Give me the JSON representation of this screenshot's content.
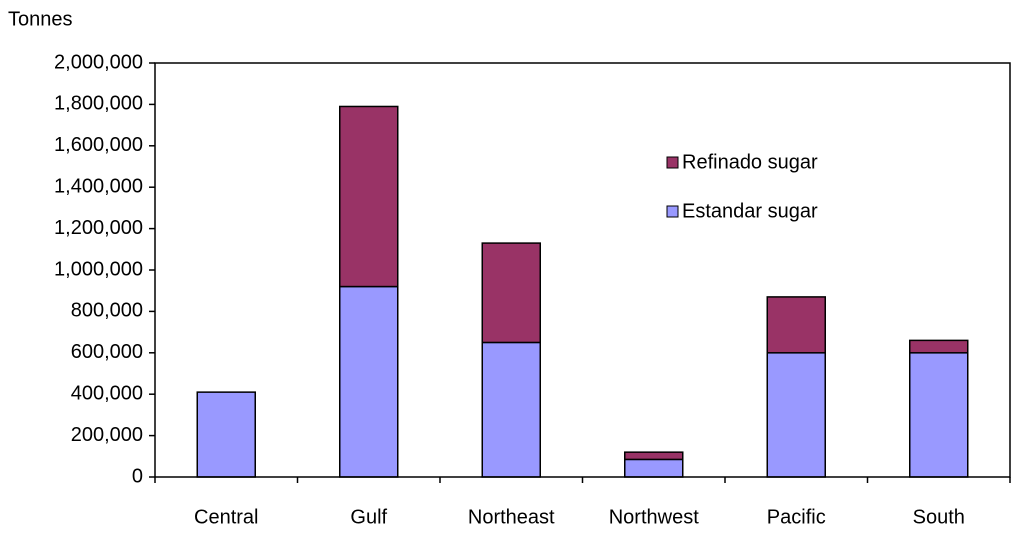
{
  "chart_data": {
    "type": "stacked_bar",
    "y_axis_label": "Tonnes",
    "categories": [
      "Central",
      "Gulf",
      "Northeast",
      "Northwest",
      "Pacific",
      "South"
    ],
    "series": [
      {
        "name": "Estandar sugar",
        "color": "#9999ff",
        "values": [
          410000,
          920000,
          650000,
          85000,
          600000,
          600000
        ]
      },
      {
        "name": "Refinado sugar",
        "color": "#993366",
        "values": [
          0,
          870000,
          480000,
          35000,
          270000,
          60000
        ]
      }
    ],
    "ylim": [
      0,
      2000000
    ],
    "yticks": [
      0,
      {
        "value": 200000,
        "label": "200,000"
      },
      {
        "value": 400000,
        "label": "400,000"
      },
      {
        "value": 600000,
        "label": "600,000"
      },
      {
        "value": 800000,
        "label": "800,000"
      },
      {
        "value": 1000000,
        "label": "1,000,000"
      },
      {
        "value": 1200000,
        "label": "1,200,000"
      },
      {
        "value": 1400000,
        "label": "1,400,000"
      },
      {
        "value": 1600000,
        "label": "1,600,000"
      },
      {
        "value": 1800000,
        "label": "1,800,000"
      },
      {
        "value": 2000000,
        "label": "2,000,000"
      }
    ],
    "legend": "upper-right",
    "grid": false
  }
}
